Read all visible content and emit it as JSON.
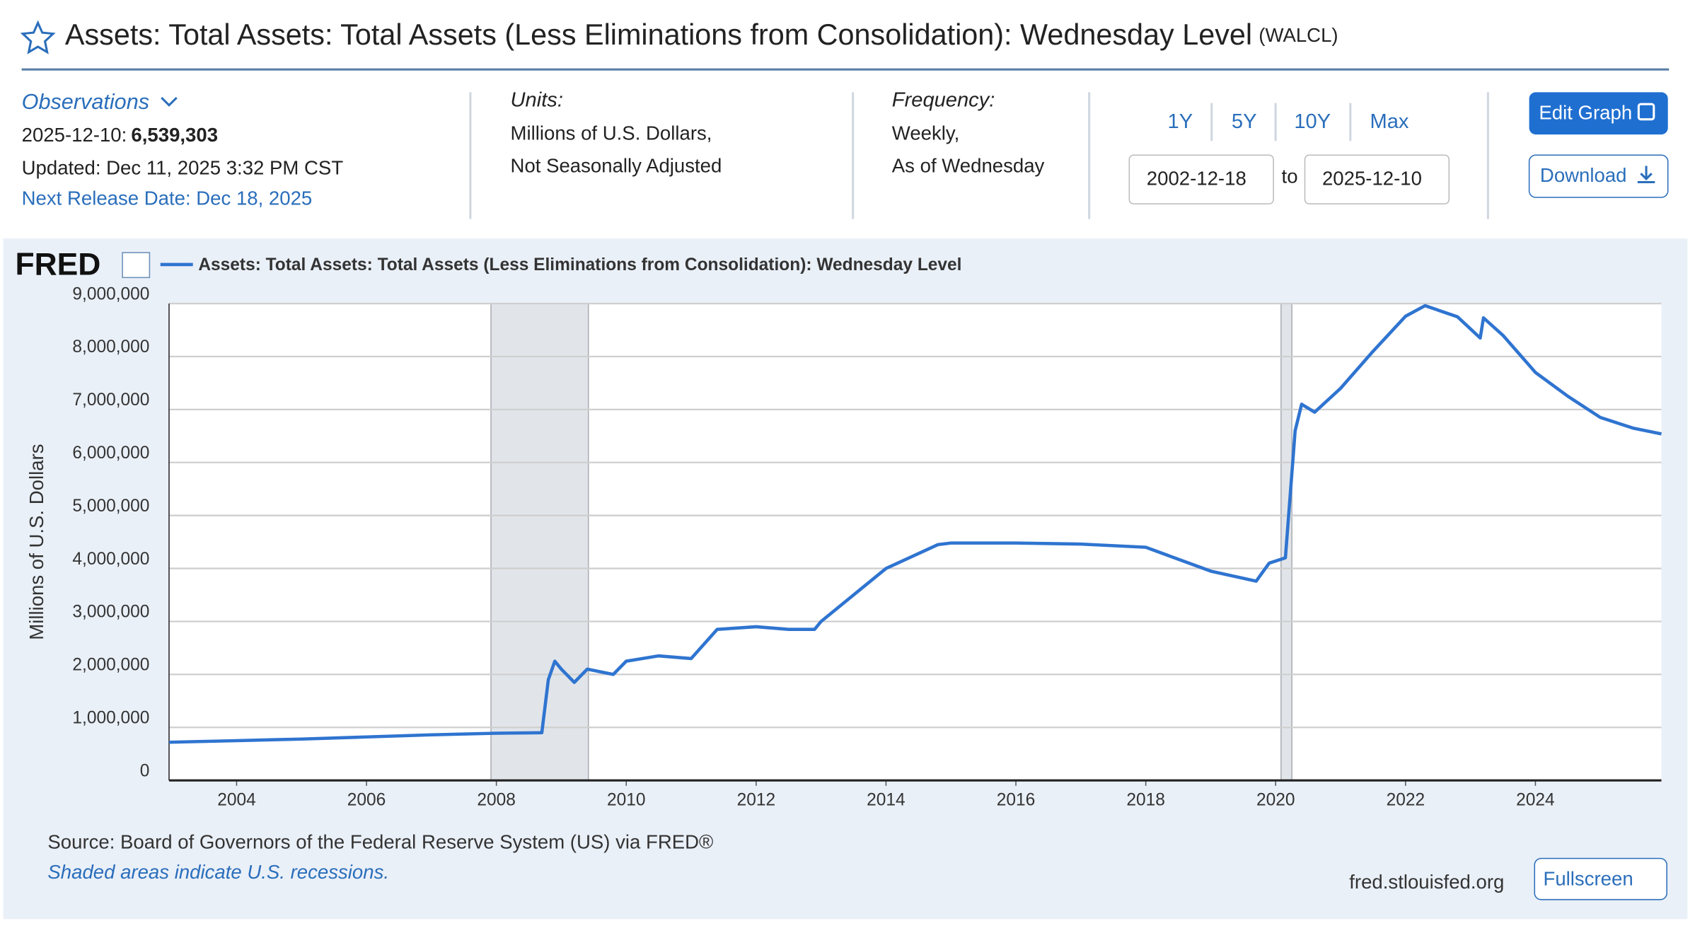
{
  "header": {
    "title": "Assets: Total Assets: Total Assets (Less Eliminations from Consolidation): Wednesday Level",
    "series_id": "(WALCL)"
  },
  "observations": {
    "label": "Observations",
    "date": "2025-12-10:",
    "value": "6,539,303",
    "updated": "Updated: Dec 11, 2025 3:32 PM CST",
    "next_release": "Next Release Date: Dec 18, 2025"
  },
  "units": {
    "label": "Units:",
    "lines": [
      "Millions of U.S. Dollars,",
      "Not Seasonally Adjusted"
    ]
  },
  "frequency": {
    "label": "Frequency:",
    "lines": [
      "Weekly,",
      "As of Wednesday"
    ]
  },
  "ranges": [
    "1Y",
    "5Y",
    "10Y",
    "Max"
  ],
  "date_range": {
    "start": "2002-12-18",
    "separator": "to",
    "end": "2025-12-10"
  },
  "buttons": {
    "edit": "Edit Graph",
    "download": "Download",
    "fullscreen": "Fullscreen"
  },
  "footer": {
    "logo": "FRED",
    "source": "Source: Board of Governors of the Federal Reserve System (US) via FRED®",
    "note": "Shaded areas indicate U.S. recessions.",
    "site": "fred.stlouisfed.org"
  },
  "chart_data": {
    "type": "line",
    "ylabel": "Millions of U.S. Dollars",
    "xlim": [
      2002.96,
      2025.94
    ],
    "xticks": [
      2004,
      2006,
      2008,
      2010,
      2012,
      2014,
      2016,
      2018,
      2020,
      2022,
      2024
    ],
    "ylim": [
      0,
      9000000
    ],
    "yticks": [
      0,
      {
        "value": 1000000,
        "label": "1,000,000"
      },
      {
        "value": 2000000,
        "label": "2,000,000"
      },
      {
        "value": 3000000,
        "label": "3,000,000"
      },
      {
        "value": 4000000,
        "label": "4,000,000"
      },
      {
        "value": 5000000,
        "label": "5,000,000"
      },
      {
        "value": 6000000,
        "label": "6,000,000"
      },
      {
        "value": 7000000,
        "label": "7,000,000"
      },
      {
        "value": 8000000,
        "label": "8,000,000"
      },
      {
        "value": 9000000,
        "label": "9,000,000"
      }
    ],
    "grid": true,
    "recessions": [
      [
        2007.917,
        2009.417
      ],
      [
        2020.083,
        2020.25
      ]
    ],
    "series": [
      {
        "name": "Assets: Total Assets: Total Assets (Less Eliminations from Consolidation): Wednesday Level",
        "color": "#2f74d0",
        "x": [
          2002.96,
          2004,
          2005,
          2006,
          2007,
          2008,
          2008.7,
          2008.8,
          2008.9,
          2009.0,
          2009.2,
          2009.4,
          2009.6,
          2009.8,
          2010,
          2010.5,
          2011,
          2011.4,
          2012,
          2012.5,
          2012.9,
          2013,
          2014,
          2014.8,
          2015,
          2016,
          2017,
          2018,
          2019,
          2019.7,
          2019.9,
          2020.15,
          2020.3,
          2020.4,
          2020.6,
          2021,
          2021.5,
          2022,
          2022.3,
          2022.8,
          2023.15,
          2023.2,
          2023.5,
          2024,
          2024.5,
          2025,
          2025.5,
          2025.94
        ],
        "values": [
          720000,
          750000,
          780000,
          820000,
          860000,
          890000,
          900000,
          1900000,
          2250000,
          2100000,
          1850000,
          2100000,
          2050000,
          2000000,
          2250000,
          2350000,
          2300000,
          2850000,
          2900000,
          2850000,
          2850000,
          3000000,
          4000000,
          4450000,
          4480000,
          4480000,
          4460000,
          4400000,
          3950000,
          3760000,
          4100000,
          4200000,
          6600000,
          7100000,
          6950000,
          7400000,
          8100000,
          8760000,
          8960000,
          8750000,
          8350000,
          8730000,
          8400000,
          7700000,
          7250000,
          6850000,
          6650000,
          6539303
        ]
      }
    ]
  }
}
